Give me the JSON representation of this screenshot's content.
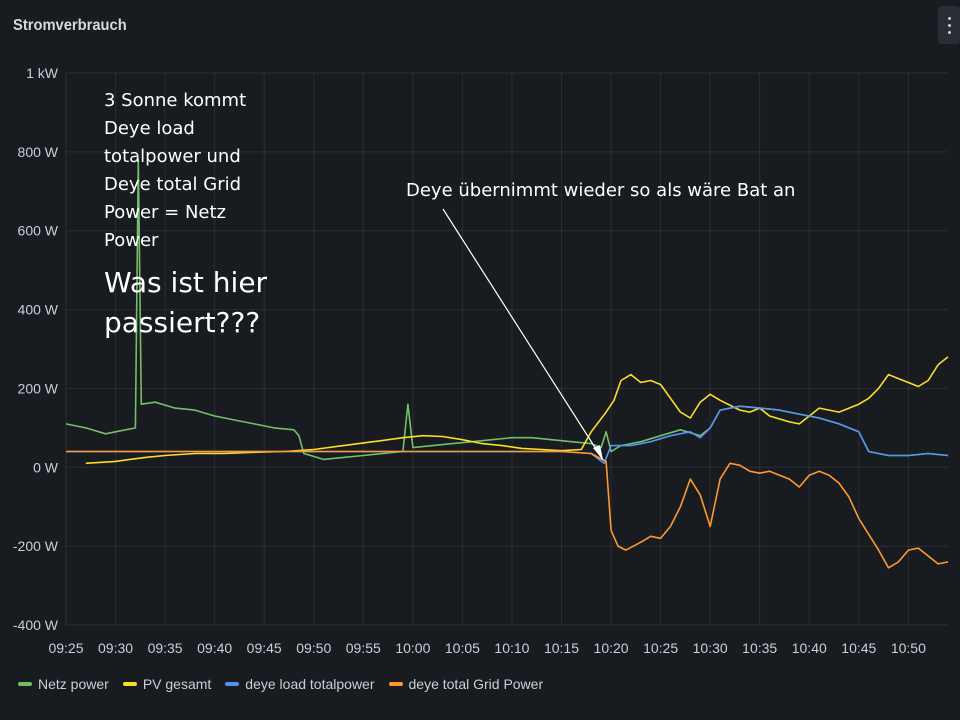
{
  "panel": {
    "title": "Stromverbrauch",
    "menu_icon": "vertical-dots-icon"
  },
  "chart_data": {
    "type": "line",
    "title": "Stromverbrauch",
    "xlabel": "",
    "ylabel": "",
    "y_unit": "W",
    "ylim": [
      -400,
      1000
    ],
    "y_ticks": [
      {
        "value": 1000,
        "label": "1 kW"
      },
      {
        "value": 800,
        "label": "800 W"
      },
      {
        "value": 600,
        "label": "600 W"
      },
      {
        "value": 400,
        "label": "400 W"
      },
      {
        "value": 200,
        "label": "200 W"
      },
      {
        "value": 0,
        "label": "0 W"
      },
      {
        "value": -200,
        "label": "-200 W"
      },
      {
        "value": -400,
        "label": "-400 W"
      }
    ],
    "xlim": [
      "09:25",
      "10:54"
    ],
    "x_ticks": [
      "09:25",
      "09:30",
      "09:35",
      "09:40",
      "09:45",
      "09:50",
      "09:55",
      "10:00",
      "10:05",
      "10:10",
      "10:15",
      "10:20",
      "10:25",
      "10:30",
      "10:35",
      "10:40",
      "10:45",
      "10:50"
    ],
    "grid": true,
    "legend_position": "bottom-left",
    "series": [
      {
        "name": "Netz power",
        "color": "#73bf69",
        "points": [
          [
            "09:25",
            110
          ],
          [
            "09:27",
            100
          ],
          [
            "09:29",
            85
          ],
          [
            "09:31",
            95
          ],
          [
            "09:32",
            100
          ],
          [
            "09:32.3",
            780
          ],
          [
            "09:32.6",
            160
          ],
          [
            "09:34",
            165
          ],
          [
            "09:36",
            150
          ],
          [
            "09:38",
            145
          ],
          [
            "09:40",
            130
          ],
          [
            "09:42",
            120
          ],
          [
            "09:44",
            110
          ],
          [
            "09:46",
            100
          ],
          [
            "09:48",
            95
          ],
          [
            "09:48.5",
            80
          ],
          [
            "09:49",
            35
          ],
          [
            "09:51",
            20
          ],
          [
            "09:53",
            25
          ],
          [
            "09:55",
            30
          ],
          [
            "09:57",
            35
          ],
          [
            "09:59",
            40
          ],
          [
            "09:59.5",
            160
          ],
          [
            "10:00",
            50
          ],
          [
            "10:02",
            55
          ],
          [
            "10:04",
            60
          ],
          [
            "10:06",
            65
          ],
          [
            "10:08",
            70
          ],
          [
            "10:10",
            75
          ],
          [
            "10:12",
            75
          ],
          [
            "10:14",
            70
          ],
          [
            "10:16",
            65
          ],
          [
            "10:18",
            60
          ],
          [
            "10:19",
            50
          ],
          [
            "10:19.5",
            90
          ],
          [
            "10:20",
            40
          ],
          [
            "10:21",
            55
          ],
          [
            "10:23",
            65
          ],
          [
            "10:25",
            80
          ],
          [
            "10:27",
            95
          ],
          [
            "10:29",
            80
          ],
          [
            "10:30",
            100
          ],
          [
            "10:31",
            145
          ],
          [
            "10:33",
            155
          ],
          [
            "10:35",
            150
          ],
          [
            "10:37",
            145
          ],
          [
            "10:39",
            135
          ],
          [
            "10:41",
            125
          ],
          [
            "10:43",
            110
          ],
          [
            "10:45",
            90
          ],
          [
            "10:46",
            40
          ],
          [
            "10:48",
            30
          ],
          [
            "10:50",
            30
          ],
          [
            "10:52",
            35
          ],
          [
            "10:54",
            30
          ]
        ]
      },
      {
        "name": "PV gesamt",
        "color": "#fade2a",
        "points": [
          [
            "09:27",
            10
          ],
          [
            "09:30",
            15
          ],
          [
            "09:33",
            25
          ],
          [
            "09:35",
            30
          ],
          [
            "09:38",
            35
          ],
          [
            "09:41",
            35
          ],
          [
            "09:44",
            38
          ],
          [
            "09:47",
            40
          ],
          [
            "09:50",
            45
          ],
          [
            "09:53",
            55
          ],
          [
            "09:56",
            65
          ],
          [
            "09:59",
            75
          ],
          [
            "10:01",
            80
          ],
          [
            "10:03",
            78
          ],
          [
            "10:05",
            70
          ],
          [
            "10:07",
            60
          ],
          [
            "10:09",
            55
          ],
          [
            "10:11",
            48
          ],
          [
            "10:13",
            45
          ],
          [
            "10:15",
            42
          ],
          [
            "10:17",
            45
          ],
          [
            "10:18",
            90
          ],
          [
            "10:19.5",
            140
          ],
          [
            "10:20.3",
            170
          ],
          [
            "10:21",
            220
          ],
          [
            "10:22",
            235
          ],
          [
            "10:23",
            215
          ],
          [
            "10:24",
            220
          ],
          [
            "10:25",
            210
          ],
          [
            "10:26",
            175
          ],
          [
            "10:27",
            140
          ],
          [
            "10:28",
            125
          ],
          [
            "10:29",
            165
          ],
          [
            "10:30",
            185
          ],
          [
            "10:31",
            170
          ],
          [
            "10:33",
            145
          ],
          [
            "10:34",
            140
          ],
          [
            "10:35",
            150
          ],
          [
            "10:36",
            130
          ],
          [
            "10:38",
            115
          ],
          [
            "10:39",
            110
          ],
          [
            "10:40",
            130
          ],
          [
            "10:41",
            150
          ],
          [
            "10:42",
            145
          ],
          [
            "10:43",
            140
          ],
          [
            "10:45",
            160
          ],
          [
            "10:46",
            175
          ],
          [
            "10:47",
            200
          ],
          [
            "10:48",
            235
          ],
          [
            "10:49",
            225
          ],
          [
            "10:50",
            215
          ],
          [
            "10:51",
            205
          ],
          [
            "10:52",
            220
          ],
          [
            "10:53",
            260
          ],
          [
            "10:54",
            280
          ]
        ]
      },
      {
        "name": "deye load totalpower",
        "color": "#5794f2",
        "points": [
          [
            "09:25",
            40
          ],
          [
            "09:30",
            40
          ],
          [
            "09:35",
            40
          ],
          [
            "09:40",
            40
          ],
          [
            "09:45",
            40
          ],
          [
            "09:50",
            40
          ],
          [
            "09:55",
            40
          ],
          [
            "10:00",
            40
          ],
          [
            "10:05",
            40
          ],
          [
            "10:10",
            40
          ],
          [
            "10:15",
            40
          ],
          [
            "10:18",
            35
          ],
          [
            "10:19.3",
            10
          ],
          [
            "10:20",
            55
          ],
          [
            "10:22",
            55
          ],
          [
            "10:24",
            65
          ],
          [
            "10:26",
            80
          ],
          [
            "10:28",
            90
          ],
          [
            "10:29",
            75
          ],
          [
            "10:30",
            100
          ],
          [
            "10:31",
            145
          ],
          [
            "10:33",
            155
          ],
          [
            "10:35",
            150
          ],
          [
            "10:37",
            145
          ],
          [
            "10:39",
            135
          ],
          [
            "10:41",
            125
          ],
          [
            "10:43",
            110
          ],
          [
            "10:45",
            90
          ],
          [
            "10:46",
            40
          ],
          [
            "10:48",
            30
          ],
          [
            "10:50",
            30
          ],
          [
            "10:52",
            35
          ],
          [
            "10:54",
            30
          ]
        ]
      },
      {
        "name": "deye total Grid Power",
        "color": "#ff9830",
        "points": [
          [
            "09:25",
            40
          ],
          [
            "09:30",
            40
          ],
          [
            "09:35",
            40
          ],
          [
            "09:40",
            40
          ],
          [
            "09:45",
            40
          ],
          [
            "09:50",
            40
          ],
          [
            "09:55",
            40
          ],
          [
            "10:00",
            40
          ],
          [
            "10:05",
            40
          ],
          [
            "10:10",
            40
          ],
          [
            "10:15",
            40
          ],
          [
            "10:18",
            35
          ],
          [
            "10:19.5",
            15
          ],
          [
            "10:20",
            -160
          ],
          [
            "10:20.7",
            -200
          ],
          [
            "10:21.5",
            -210
          ],
          [
            "10:23",
            -190
          ],
          [
            "10:24",
            -175
          ],
          [
            "10:25",
            -180
          ],
          [
            "10:26",
            -150
          ],
          [
            "10:27",
            -100
          ],
          [
            "10:28",
            -30
          ],
          [
            "10:29",
            -70
          ],
          [
            "10:30",
            -150
          ],
          [
            "10:31",
            -30
          ],
          [
            "10:32",
            10
          ],
          [
            "10:33",
            5
          ],
          [
            "10:34",
            -10
          ],
          [
            "10:35",
            -15
          ],
          [
            "10:36",
            -10
          ],
          [
            "10:37",
            -20
          ],
          [
            "10:38",
            -30
          ],
          [
            "10:39",
            -50
          ],
          [
            "10:40",
            -20
          ],
          [
            "10:41",
            -10
          ],
          [
            "10:42",
            -20
          ],
          [
            "10:43",
            -40
          ],
          [
            "10:44",
            -75
          ],
          [
            "10:45",
            -130
          ],
          [
            "10:46",
            -170
          ],
          [
            "10:47",
            -210
          ],
          [
            "10:48",
            -255
          ],
          [
            "10:49",
            -240
          ],
          [
            "10:50",
            -210
          ],
          [
            "10:51",
            -205
          ],
          [
            "10:52",
            -225
          ],
          [
            "10:53",
            -245
          ],
          [
            "10:54",
            -240
          ]
        ]
      }
    ]
  },
  "annotations": {
    "left_note_lines": [
      "3 Sonne kommt",
      "Deye load",
      "totalpower und",
      "Deye total Grid",
      "Power = Netz",
      "Power"
    ],
    "question_lines": [
      "Was ist hier",
      "passiert???"
    ],
    "right_note": "Deye übernimmt wieder so als wäre Bat an"
  }
}
